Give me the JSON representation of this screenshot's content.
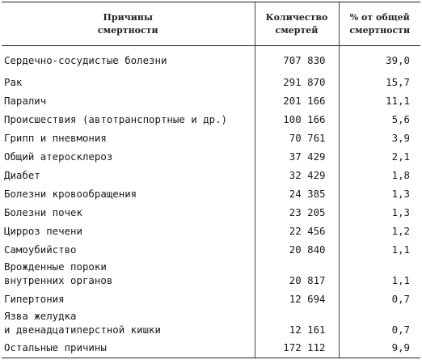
{
  "table": {
    "headers": {
      "cause": "Причины\nсмертности",
      "count": "Количество\nсмертей",
      "percent": "% от общей\nсмертности"
    },
    "rows": [
      {
        "cause": "Сердечно-сосудистые болезни",
        "count": "707 830",
        "percent": "39,0"
      },
      {
        "cause": "Рак",
        "count": "291 870",
        "percent": "15,7"
      },
      {
        "cause": "Паралич",
        "count": "201 166",
        "percent": "11,1"
      },
      {
        "cause": "Происшествия (автотранспортные и др.)",
        "count": "100 166",
        "percent": "5,6"
      },
      {
        "cause": "Грипп и пневмония",
        "count": "70 761",
        "percent": "3,9"
      },
      {
        "cause": "Общий атеросклероз",
        "count": "37 429",
        "percent": "2,1"
      },
      {
        "cause": "Диабет",
        "count": "32 429",
        "percent": "1,8"
      },
      {
        "cause": "Болезни кровообращения",
        "count": "24 385",
        "percent": "1,3"
      },
      {
        "cause": "Болезни почек",
        "count": "23 205",
        "percent": "1,3"
      },
      {
        "cause": "Цирроз печени",
        "count": "22 456",
        "percent": "1,2"
      },
      {
        "cause": "Самоубийство",
        "count": "20 840",
        "percent": "1,1"
      },
      {
        "cause": "Врожденные пороки\nвнутренних органов",
        "count": "20 817",
        "percent": "1,1"
      },
      {
        "cause": "Гипертония",
        "count": "12 694",
        "percent": "0,7"
      },
      {
        "cause": "Язва желудка\nи двенадцатиперстной кишки",
        "count": "12 161",
        "percent": "0,7"
      },
      {
        "cause": "Остальные причины",
        "count": "172 112",
        "percent": "9,9"
      }
    ]
  }
}
